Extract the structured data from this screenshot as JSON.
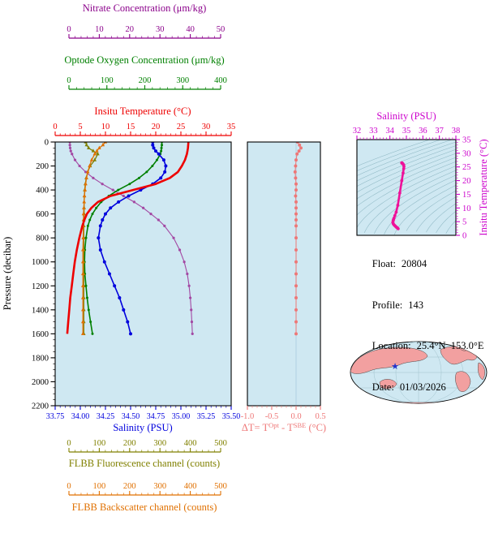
{
  "page": {
    "background": "#ffffff",
    "plot_bg": "#cfe8f2"
  },
  "info": {
    "lines": [
      {
        "label": "Float:",
        "value": "20804"
      },
      {
        "label": "Profile:",
        "value": "143"
      },
      {
        "label": "Location:",
        "value": "25.4°N  153.0°E"
      },
      {
        "label": "Date:",
        "value": "01/03/2026"
      }
    ]
  },
  "map": {
    "ocean_color": "#cfe8f2",
    "land_color": "#f2a0a0",
    "star_color": "#2233cc",
    "star_glyph": "★"
  },
  "chart_data": [
    {
      "type": "line",
      "ylabel": "Pressure (decibar)",
      "ylim": [
        0,
        2200
      ],
      "y_inverted": true,
      "y_ticks": [
        0,
        200,
        400,
        600,
        800,
        1000,
        1200,
        1400,
        1600,
        1800,
        2000,
        2200
      ],
      "y_tick_labels": [
        "0",
        "200",
        "400",
        "600",
        "800",
        "1000",
        "1200",
        "1400",
        "1600",
        "1800",
        "2000",
        "2200"
      ],
      "pressure": [
        0,
        25,
        50,
        75,
        100,
        150,
        200,
        250,
        300,
        350,
        400,
        450,
        500,
        550,
        600,
        650,
        700,
        800,
        900,
        1000,
        1100,
        1200,
        1300,
        1400,
        1500,
        1600
      ],
      "x_axes": [
        {
          "id": "nitrate",
          "label": "Nitrate Concentration (μm/kg)",
          "color": "#8b008b",
          "lim": [
            0,
            50
          ],
          "ticks": [
            0,
            10,
            20,
            30,
            40,
            50
          ],
          "tick_labels": [
            "0",
            "10",
            "20",
            "30",
            "40",
            "50"
          ]
        },
        {
          "id": "oxygen",
          "label": "Optode Oxygen Concentration (μm/kg)",
          "color": "#008000",
          "lim": [
            0,
            400
          ],
          "ticks": [
            0,
            100,
            200,
            300,
            400
          ],
          "tick_labels": [
            "0",
            "100",
            "200",
            "300",
            "400"
          ]
        },
        {
          "id": "temperature",
          "label": "Insitu Temperature (°C)",
          "color": "#ee0000",
          "lim": [
            0,
            35
          ],
          "ticks": [
            0,
            5,
            10,
            15,
            20,
            25,
            30,
            35
          ],
          "tick_labels": [
            "0",
            "5",
            "10",
            "15",
            "20",
            "25",
            "30",
            "35"
          ]
        },
        {
          "id": "salinity",
          "label": "Salinity (PSU)",
          "color": "#0000dd",
          "lim": [
            33.75,
            35.5
          ],
          "ticks": [
            33.75,
            34.0,
            34.25,
            34.5,
            34.75,
            35.0,
            35.25,
            35.5
          ],
          "tick_labels": [
            "33.75",
            "34.00",
            "34.25",
            "34.50",
            "34.75",
            "35.00",
            "35.25",
            "35.50"
          ]
        },
        {
          "id": "fluorescence",
          "label": "FLBB Fluorescence channel (counts)",
          "color": "#808000",
          "lim": [
            0,
            500
          ],
          "ticks": [
            0,
            100,
            200,
            300,
            400,
            500
          ],
          "tick_labels": [
            "0",
            "100",
            "200",
            "300",
            "400",
            "500"
          ]
        },
        {
          "id": "backscatter",
          "label": "FLBB Backscatter channel (counts)",
          "color": "#e07000",
          "lim": [
            0,
            500
          ],
          "ticks": [
            0,
            100,
            200,
            300,
            400,
            500
          ],
          "tick_labels": [
            "0",
            "100",
            "200",
            "300",
            "400",
            "500"
          ]
        }
      ],
      "series": [
        {
          "name": "Nitrate Concentration",
          "axis": "nitrate",
          "color": "#a348a3",
          "width": 1.1,
          "marker": "circle",
          "marker_size": 1.6,
          "values": [
            0.3,
            0.3,
            0.4,
            0.6,
            1.0,
            2.0,
            3.5,
            5.5,
            8.0,
            11,
            14.5,
            18,
            21.5,
            24.5,
            27,
            29.5,
            31.5,
            34.5,
            36.5,
            38,
            39,
            39.6,
            40,
            40.3,
            40.5,
            40.7
          ]
        },
        {
          "name": "Optode Oxygen Concentration",
          "axis": "oxygen",
          "color": "#008000",
          "width": 1.6,
          "marker": "circle",
          "marker_size": 1.5,
          "values": [
            245,
            245,
            244,
            243,
            241,
            232,
            220,
            205,
            185,
            160,
            130,
            105,
            85,
            72,
            62,
            55,
            50,
            45,
            42,
            41,
            42,
            45,
            48,
            52,
            57,
            62
          ]
        },
        {
          "name": "FLBB Fluorescence channel",
          "axis": "fluorescence",
          "color": "#808000",
          "width": 1.3,
          "marker": "triangle",
          "marker_size": 2.2,
          "values": [
            55,
            58,
            65,
            80,
            95,
            85,
            70,
            62,
            57,
            54,
            52,
            51,
            50,
            50,
            50,
            49,
            49,
            49,
            49,
            49,
            49,
            49,
            49,
            49,
            49,
            49
          ]
        },
        {
          "name": "FLBB Backscatter channel",
          "axis": "backscatter",
          "color": "#e07000",
          "width": 1.3,
          "marker": "triangle",
          "marker_size": 2.2,
          "values": [
            120,
            112,
            100,
            92,
            85,
            75,
            68,
            62,
            58,
            55,
            53,
            51,
            50,
            49,
            48,
            48,
            47,
            47,
            46,
            46,
            46,
            46,
            46,
            46,
            46,
            46
          ]
        },
        {
          "name": "Salinity",
          "axis": "salinity",
          "color": "#0000dd",
          "width": 1.6,
          "marker": "circle",
          "marker_size": 2.0,
          "values": [
            34.72,
            34.72,
            34.73,
            34.75,
            34.78,
            34.83,
            34.85,
            34.84,
            34.8,
            34.72,
            34.6,
            34.48,
            34.38,
            34.3,
            34.25,
            34.22,
            34.2,
            34.18,
            34.2,
            34.24,
            34.29,
            34.34,
            34.39,
            34.43,
            34.47,
            34.5
          ]
        },
        {
          "name": "Insitu Temperature",
          "axis": "temperature",
          "color": "#ee0000",
          "width": 2.6,
          "marker": "none",
          "marker_size": 0,
          "values": [
            26.5,
            26.45,
            26.4,
            26.3,
            26.2,
            25.8,
            25.2,
            24.4,
            22.8,
            20.0,
            15.5,
            11.0,
            8.5,
            7.2,
            6.3,
            5.8,
            5.4,
            4.8,
            4.3,
            3.9,
            3.6,
            3.3,
            3.0,
            2.8,
            2.6,
            2.4
          ]
        }
      ]
    },
    {
      "type": "scatter",
      "xlabel_parts": [
        {
          "t": "ΔT= T"
        },
        {
          "t": "Opt",
          "sup": true
        },
        {
          "t": " - T"
        },
        {
          "t": "SBE",
          "sup": true
        },
        {
          "t": " (°C)"
        }
      ],
      "color": "#ee7777",
      "xlim": [
        -1.0,
        0.5
      ],
      "x_ticks": [
        -1.0,
        -0.5,
        0.0,
        0.5
      ],
      "x_tick_labels": [
        "-1.0",
        "-0.5",
        "0.0",
        "0.5"
      ],
      "values": [
        0.03,
        0.07,
        0.1,
        0.06,
        0.02,
        0.0,
        -0.01,
        -0.02,
        -0.01,
        0.0,
        0.0,
        -0.01,
        0.0,
        0.0,
        0.0,
        0.0,
        0.0,
        0.0,
        0.0,
        0.0,
        0.0,
        0.0,
        0.0,
        0.0,
        0.0,
        0.0
      ]
    },
    {
      "type": "line",
      "xlabel": "Salinity (PSU)",
      "xlim": [
        32,
        38
      ],
      "x_ticks": [
        32,
        33,
        34,
        35,
        36,
        37,
        38
      ],
      "x_tick_labels": [
        "32",
        "33",
        "34",
        "35",
        "36",
        "37",
        "38"
      ],
      "ylabel": "Insitu Temperature (°C)",
      "ylim": [
        0,
        35
      ],
      "y_ticks": [
        0,
        5,
        10,
        15,
        20,
        25,
        30,
        35
      ],
      "y_tick_labels": [
        "0",
        "5",
        "10",
        "15",
        "20",
        "25",
        "30",
        "35"
      ],
      "axis_color": "#cc00cc",
      "line_color": "#ee1199",
      "points": [
        [
          34.72,
          26.5
        ],
        [
          34.72,
          26.45
        ],
        [
          34.73,
          26.4
        ],
        [
          34.75,
          26.3
        ],
        [
          34.78,
          26.2
        ],
        [
          34.83,
          25.8
        ],
        [
          34.85,
          25.2
        ],
        [
          34.84,
          24.4
        ],
        [
          34.8,
          22.8
        ],
        [
          34.72,
          20.0
        ],
        [
          34.6,
          15.5
        ],
        [
          34.48,
          11.0
        ],
        [
          34.38,
          8.5
        ],
        [
          34.3,
          7.2
        ],
        [
          34.25,
          6.3
        ],
        [
          34.22,
          5.8
        ],
        [
          34.2,
          5.4
        ],
        [
          34.18,
          4.8
        ],
        [
          34.2,
          4.3
        ],
        [
          34.24,
          3.9
        ],
        [
          34.29,
          3.6
        ],
        [
          34.34,
          3.3
        ],
        [
          34.39,
          3.0
        ],
        [
          34.43,
          2.8
        ],
        [
          34.47,
          2.6
        ],
        [
          34.5,
          2.4
        ]
      ]
    }
  ]
}
